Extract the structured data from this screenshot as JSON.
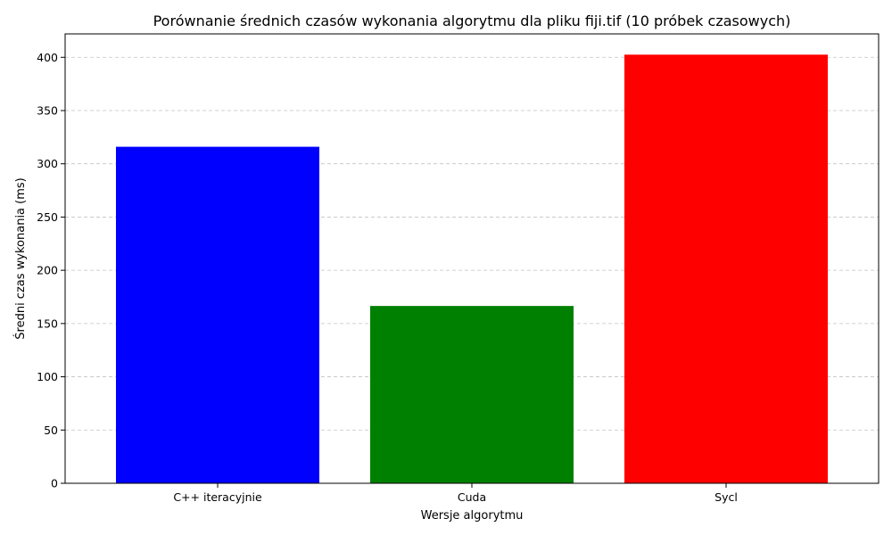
{
  "chart_data": {
    "type": "bar",
    "title": "Porównanie średnich czasów wykonania algorytmu dla pliku fiji.tif (10 próbek czasowych)",
    "xlabel": "Wersje algorytmu",
    "ylabel": "Średni czas wykonania (ms)",
    "categories": [
      "C++ iteracyjnie",
      "Cuda",
      "Sycl"
    ],
    "values": [
      316,
      166.5,
      402.5
    ],
    "colors": [
      "#0000ff",
      "#008000",
      "#ff0000"
    ],
    "ylim": [
      0,
      422
    ],
    "yticks": [
      0,
      50,
      100,
      150,
      200,
      250,
      300,
      350,
      400
    ],
    "grid": "y-dashed",
    "legend": "none"
  }
}
